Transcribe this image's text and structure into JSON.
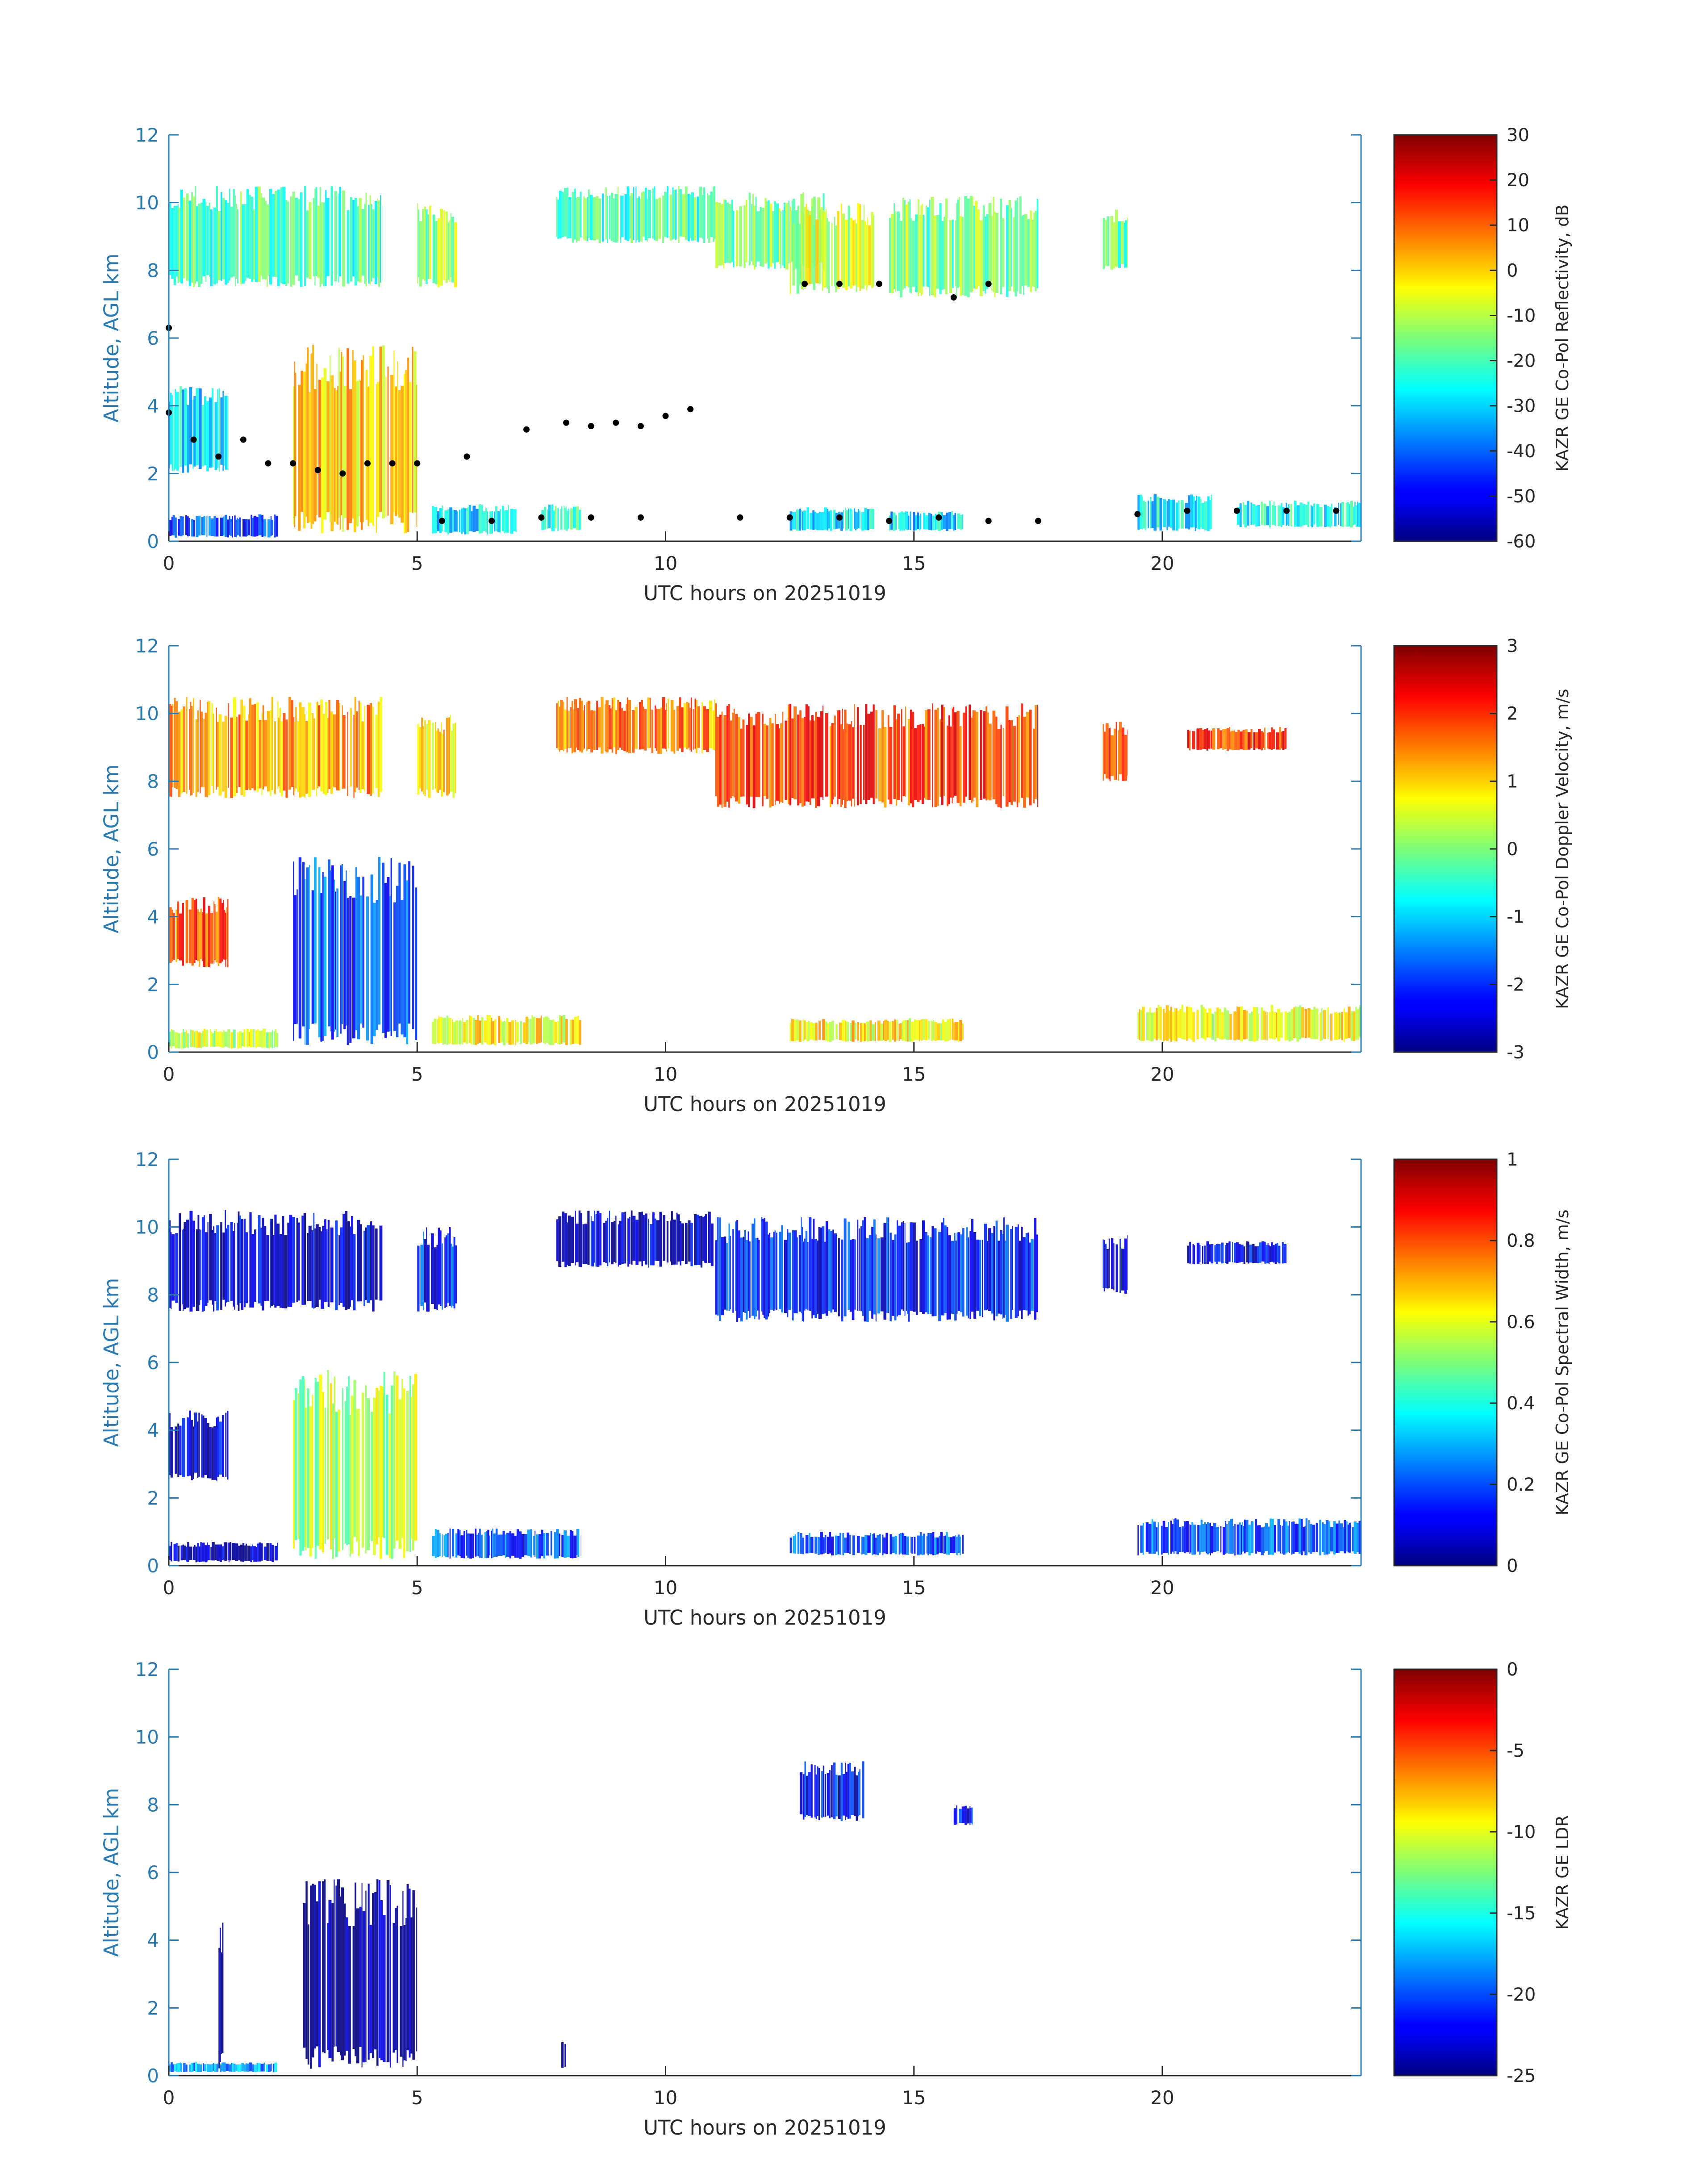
{
  "figure": {
    "colors": {
      "axis_blue": "#2a7ab0",
      "text_dark": "#262626",
      "background": "#ffffff",
      "cbar_frame": "#262626"
    },
    "colormap": "jet"
  },
  "chart_data": [
    {
      "type": "heatmap",
      "title": "",
      "xlabel": "UTC hours on 20251019",
      "ylabel": "Altitude, AGL km",
      "xlim": [
        0,
        24
      ],
      "ylim": [
        0,
        12
      ],
      "xticks": [
        "0",
        "5",
        "10",
        "15",
        "20"
      ],
      "yticks": [
        "0",
        "2",
        "4",
        "6",
        "8",
        "10",
        "12"
      ],
      "colorbar": {
        "label": "KAZR GE Co-Pol Reflectivity, dB",
        "range": [
          -60,
          30
        ],
        "ticks": [
          "-60",
          "-50",
          "-40",
          "-30",
          "-20",
          "-10",
          "0",
          "10",
          "20",
          "30"
        ]
      },
      "regions": [
        {
          "x": [
            0,
            4.3
          ],
          "y": [
            7.5,
            10.5
          ],
          "value": -20
        },
        {
          "x": [
            5.0,
            5.8
          ],
          "y": [
            7.5,
            10.0
          ],
          "value": -12
        },
        {
          "x": [
            7.8,
            11.0
          ],
          "y": [
            8.8,
            10.5
          ],
          "value": -20
        },
        {
          "x": [
            11.0,
            13.2
          ],
          "y": [
            8.0,
            10.3
          ],
          "value": -15
        },
        {
          "x": [
            12.5,
            14.2
          ],
          "y": [
            7.3,
            10.0
          ],
          "value": -8
        },
        {
          "x": [
            14.5,
            17.5
          ],
          "y": [
            7.2,
            10.2
          ],
          "value": -15
        },
        {
          "x": [
            18.8,
            19.3
          ],
          "y": [
            8.0,
            9.8
          ],
          "value": -17
        },
        {
          "x": [
            0,
            1.2
          ],
          "y": [
            2.0,
            4.6
          ],
          "value": -28
        },
        {
          "x": [
            2.5,
            5.0
          ],
          "y": [
            0.2,
            5.8
          ],
          "value": 0
        },
        {
          "x": [
            0,
            2.2
          ],
          "y": [
            0.1,
            0.8
          ],
          "value": -45
        },
        {
          "x": [
            5.3,
            7.0
          ],
          "y": [
            0.2,
            1.1
          ],
          "value": -28
        },
        {
          "x": [
            7.5,
            8.3
          ],
          "y": [
            0.3,
            1.1
          ],
          "value": -22
        },
        {
          "x": [
            12.5,
            14.2
          ],
          "y": [
            0.3,
            1.0
          ],
          "value": -28
        },
        {
          "x": [
            14.5,
            16.0
          ],
          "y": [
            0.3,
            0.9
          ],
          "value": -30
        },
        {
          "x": [
            19.5,
            21.0
          ],
          "y": [
            0.3,
            1.4
          ],
          "value": -28
        },
        {
          "x": [
            21.5,
            24.0
          ],
          "y": [
            0.4,
            1.2
          ],
          "value": -26
        }
      ],
      "cloud_base_points": [
        {
          "x": 0.0,
          "y": 3.8
        },
        {
          "x": 0.5,
          "y": 3.0
        },
        {
          "x": 1.0,
          "y": 2.5
        },
        {
          "x": 1.5,
          "y": 3.0
        },
        {
          "x": 2.0,
          "y": 2.3
        },
        {
          "x": 2.5,
          "y": 2.3
        },
        {
          "x": 3.0,
          "y": 2.1
        },
        {
          "x": 3.5,
          "y": 2.0
        },
        {
          "x": 4.0,
          "y": 2.3
        },
        {
          "x": 4.5,
          "y": 2.3
        },
        {
          "x": 5.0,
          "y": 2.3
        },
        {
          "x": 6.0,
          "y": 2.5
        },
        {
          "x": 7.2,
          "y": 3.3
        },
        {
          "x": 8.0,
          "y": 3.5
        },
        {
          "x": 8.5,
          "y": 3.4
        },
        {
          "x": 9.0,
          "y": 3.5
        },
        {
          "x": 9.5,
          "y": 3.4
        },
        {
          "x": 10.0,
          "y": 3.7
        },
        {
          "x": 10.5,
          "y": 3.9
        },
        {
          "x": 5.5,
          "y": 0.6
        },
        {
          "x": 6.5,
          "y": 0.6
        },
        {
          "x": 7.5,
          "y": 0.7
        },
        {
          "x": 8.5,
          "y": 0.7
        },
        {
          "x": 9.5,
          "y": 0.7
        },
        {
          "x": 11.5,
          "y": 0.7
        },
        {
          "x": 12.5,
          "y": 0.7
        },
        {
          "x": 13.5,
          "y": 0.7
        },
        {
          "x": 14.5,
          "y": 0.6
        },
        {
          "x": 15.5,
          "y": 0.7
        },
        {
          "x": 16.5,
          "y": 0.6
        },
        {
          "x": 17.5,
          "y": 0.6
        },
        {
          "x": 19.5,
          "y": 0.8
        },
        {
          "x": 20.5,
          "y": 0.9
        },
        {
          "x": 21.5,
          "y": 0.9
        },
        {
          "x": 22.5,
          "y": 0.9
        },
        {
          "x": 23.5,
          "y": 0.9
        },
        {
          "x": 12.8,
          "y": 7.6
        },
        {
          "x": 13.5,
          "y": 7.6
        },
        {
          "x": 14.3,
          "y": 7.6
        },
        {
          "x": 16.5,
          "y": 7.6
        },
        {
          "x": 15.8,
          "y": 7.2
        },
        {
          "x": 0.0,
          "y": 6.3
        }
      ]
    },
    {
      "type": "heatmap",
      "title": "",
      "xlabel": "UTC hours on 20251019",
      "ylabel": "Altitude, AGL km",
      "xlim": [
        0,
        24
      ],
      "ylim": [
        0,
        12
      ],
      "xticks": [
        "0",
        "5",
        "10",
        "15",
        "20"
      ],
      "yticks": [
        "0",
        "2",
        "4",
        "6",
        "8",
        "10",
        "12"
      ],
      "colorbar": {
        "label": "KAZR GE Co-Pol Doppler Velocity, m/s",
        "range": [
          -3,
          3
        ],
        "ticks": [
          "-3",
          "-2",
          "-1",
          "0",
          "1",
          "2",
          "3"
        ]
      },
      "regions": [
        {
          "x": [
            0,
            4.3
          ],
          "y": [
            7.5,
            10.5
          ],
          "value": 1.3
        },
        {
          "x": [
            5.0,
            5.8
          ],
          "y": [
            7.5,
            10.0
          ],
          "value": 1.0
        },
        {
          "x": [
            7.8,
            11.0
          ],
          "y": [
            8.8,
            10.5
          ],
          "value": 1.5
        },
        {
          "x": [
            11.0,
            17.5
          ],
          "y": [
            7.2,
            10.3
          ],
          "value": 1.9
        },
        {
          "x": [
            18.8,
            19.3
          ],
          "y": [
            8.0,
            9.8
          ],
          "value": 2.0
        },
        {
          "x": [
            20.5,
            22.5
          ],
          "y": [
            8.9,
            9.6
          ],
          "value": 2.0
        },
        {
          "x": [
            0,
            1.2
          ],
          "y": [
            2.5,
            4.6
          ],
          "value": 1.8
        },
        {
          "x": [
            2.5,
            5.0
          ],
          "y": [
            0.2,
            5.8
          ],
          "value": -1.8
        },
        {
          "x": [
            0,
            2.2
          ],
          "y": [
            0.1,
            0.7
          ],
          "value": 0.4
        },
        {
          "x": [
            5.3,
            8.3
          ],
          "y": [
            0.2,
            1.1
          ],
          "value": 0.8
        },
        {
          "x": [
            12.5,
            16.0
          ],
          "y": [
            0.3,
            1.0
          ],
          "value": 0.8
        },
        {
          "x": [
            19.5,
            24.0
          ],
          "y": [
            0.3,
            1.4
          ],
          "value": 0.7
        }
      ]
    },
    {
      "type": "heatmap",
      "title": "",
      "xlabel": "UTC hours on 20251019",
      "ylabel": "Altitude, AGL km",
      "xlim": [
        0,
        24
      ],
      "ylim": [
        0,
        12
      ],
      "xticks": [
        "0",
        "5",
        "10",
        "15",
        "20"
      ],
      "yticks": [
        "0",
        "2",
        "4",
        "6",
        "8",
        "10",
        "12"
      ],
      "colorbar": {
        "label": "KAZR GE Co-Pol Spectral Width, m/s",
        "range": [
          0,
          1
        ],
        "ticks": [
          "0",
          "0.2",
          "0.4",
          "0.6",
          "0.8",
          "1"
        ]
      },
      "regions": [
        {
          "x": [
            0,
            4.3
          ],
          "y": [
            7.5,
            10.5
          ],
          "value": 0.08
        },
        {
          "x": [
            5.0,
            5.8
          ],
          "y": [
            7.5,
            10.0
          ],
          "value": 0.15
        },
        {
          "x": [
            7.8,
            11.0
          ],
          "y": [
            8.8,
            10.5
          ],
          "value": 0.08
        },
        {
          "x": [
            11.0,
            17.5
          ],
          "y": [
            7.2,
            10.3
          ],
          "value": 0.15
        },
        {
          "x": [
            18.8,
            19.3
          ],
          "y": [
            8.0,
            9.8
          ],
          "value": 0.08
        },
        {
          "x": [
            20.5,
            22.5
          ],
          "y": [
            8.9,
            9.6
          ],
          "value": 0.1
        },
        {
          "x": [
            0,
            1.2
          ],
          "y": [
            2.5,
            4.6
          ],
          "value": 0.1
        },
        {
          "x": [
            2.5,
            5.0
          ],
          "y": [
            0.2,
            5.8
          ],
          "value": 0.55
        },
        {
          "x": [
            0,
            2.2
          ],
          "y": [
            0.1,
            0.7
          ],
          "value": 0.05
        },
        {
          "x": [
            5.3,
            8.3
          ],
          "y": [
            0.2,
            1.1
          ],
          "value": 0.2
        },
        {
          "x": [
            12.5,
            16.0
          ],
          "y": [
            0.3,
            1.0
          ],
          "value": 0.2
        },
        {
          "x": [
            19.5,
            24.0
          ],
          "y": [
            0.3,
            1.4
          ],
          "value": 0.2
        }
      ]
    },
    {
      "type": "heatmap",
      "title": "",
      "xlabel": "UTC hours on 20251019",
      "ylabel": "Altitude, AGL km",
      "xlim": [
        0,
        24
      ],
      "ylim": [
        0,
        12
      ],
      "xticks": [
        "0",
        "5",
        "10",
        "15",
        "20"
      ],
      "yticks": [
        "0",
        "2",
        "4",
        "6",
        "8",
        "10",
        "12"
      ],
      "colorbar": {
        "label": "KAZR GE LDR",
        "range": [
          -25,
          0
        ],
        "ticks": [
          "-25",
          "-20",
          "-15",
          "-10",
          "-5",
          "0"
        ]
      },
      "regions": [
        {
          "x": [
            0,
            2.2
          ],
          "y": [
            0.1,
            0.4
          ],
          "value": -18
        },
        {
          "x": [
            1.0,
            1.1
          ],
          "y": [
            0.2,
            4.6
          ],
          "value": -24
        },
        {
          "x": [
            2.7,
            5.0
          ],
          "y": [
            0.2,
            5.8
          ],
          "value": -25
        },
        {
          "x": [
            7.9,
            8.0
          ],
          "y": [
            0.2,
            1.0
          ],
          "value": -24
        },
        {
          "x": [
            12.7,
            14.0
          ],
          "y": [
            7.5,
            9.3
          ],
          "value": -22
        },
        {
          "x": [
            15.8,
            16.2
          ],
          "y": [
            7.4,
            8.0
          ],
          "value": -22
        }
      ]
    }
  ]
}
